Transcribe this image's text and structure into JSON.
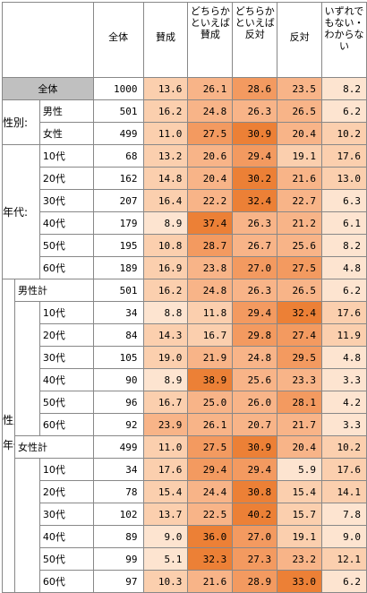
{
  "headers": [
    "全体",
    "賛成",
    "どちらかといえば賛成",
    "どちらかといえば反対",
    "反対",
    "いずれでもない・わからない"
  ],
  "row_overall": {
    "label": "全体",
    "n": "1000",
    "values": [
      "13.6",
      "26.1",
      "28.6",
      "23.5",
      "8.2"
    ]
  },
  "group_gender": {
    "label": "性別:",
    "rows": [
      {
        "label": "男性",
        "n": "501",
        "values": [
          "16.2",
          "24.8",
          "26.3",
          "26.5",
          "6.2"
        ]
      },
      {
        "label": "女性",
        "n": "499",
        "values": [
          "11.0",
          "27.5",
          "30.9",
          "20.4",
          "10.2"
        ]
      }
    ]
  },
  "group_age": {
    "label": "年代:",
    "rows": [
      {
        "label": "10代",
        "n": "68",
        "values": [
          "13.2",
          "20.6",
          "29.4",
          "19.1",
          "17.6"
        ]
      },
      {
        "label": "20代",
        "n": "162",
        "values": [
          "14.8",
          "20.4",
          "30.2",
          "21.6",
          "13.0"
        ]
      },
      {
        "label": "30代",
        "n": "207",
        "values": [
          "16.4",
          "22.2",
          "32.4",
          "22.7",
          "6.3"
        ]
      },
      {
        "label": "40代",
        "n": "179",
        "values": [
          "8.9",
          "37.4",
          "26.3",
          "21.2",
          "6.1"
        ]
      },
      {
        "label": "50代",
        "n": "195",
        "values": [
          "10.8",
          "28.7",
          "26.7",
          "25.6",
          "8.2"
        ]
      },
      {
        "label": "60代",
        "n": "189",
        "values": [
          "16.9",
          "23.8",
          "27.0",
          "27.5",
          "4.8"
        ]
      }
    ]
  },
  "group_gender_age": {
    "label_line1": "性別:",
    "label_line2": "×",
    "label_line3": "年代:",
    "male": {
      "label": "男性計",
      "n": "501",
      "values": [
        "16.2",
        "24.8",
        "26.3",
        "26.5",
        "6.2"
      ],
      "rows": [
        {
          "label": "10代",
          "n": "34",
          "values": [
            "8.8",
            "11.8",
            "29.4",
            "32.4",
            "17.6"
          ]
        },
        {
          "label": "20代",
          "n": "84",
          "values": [
            "14.3",
            "16.7",
            "29.8",
            "27.4",
            "11.9"
          ]
        },
        {
          "label": "30代",
          "n": "105",
          "values": [
            "19.0",
            "21.9",
            "24.8",
            "29.5",
            "4.8"
          ]
        },
        {
          "label": "40代",
          "n": "90",
          "values": [
            "8.9",
            "38.9",
            "25.6",
            "23.3",
            "3.3"
          ]
        },
        {
          "label": "50代",
          "n": "96",
          "values": [
            "16.7",
            "25.0",
            "26.0",
            "28.1",
            "4.2"
          ]
        },
        {
          "label": "60代",
          "n": "92",
          "values": [
            "23.9",
            "26.1",
            "20.7",
            "21.7",
            "3.3"
          ]
        }
      ]
    },
    "female": {
      "label": "女性計",
      "n": "499",
      "values": [
        "11.0",
        "27.5",
        "30.9",
        "20.4",
        "10.2"
      ],
      "rows": [
        {
          "label": "10代",
          "n": "34",
          "values": [
            "17.6",
            "29.4",
            "29.4",
            "5.9",
            "17.6"
          ]
        },
        {
          "label": "20代",
          "n": "78",
          "values": [
            "15.4",
            "24.4",
            "30.8",
            "15.4",
            "14.1"
          ]
        },
        {
          "label": "30代",
          "n": "102",
          "values": [
            "13.7",
            "22.5",
            "40.2",
            "15.7",
            "7.8"
          ]
        },
        {
          "label": "40代",
          "n": "89",
          "values": [
            "9.0",
            "36.0",
            "27.0",
            "19.1",
            "9.0"
          ]
        },
        {
          "label": "50代",
          "n": "99",
          "values": [
            "5.1",
            "32.3",
            "27.3",
            "23.2",
            "12.1"
          ]
        },
        {
          "label": "60代",
          "n": "97",
          "values": [
            "10.3",
            "21.6",
            "28.9",
            "33.0",
            "6.2"
          ]
        }
      ]
    }
  },
  "heat_colors": [
    "#fde4d0",
    "#fbcfae",
    "#f8b488",
    "#f39a60",
    "#ec8036"
  ]
}
